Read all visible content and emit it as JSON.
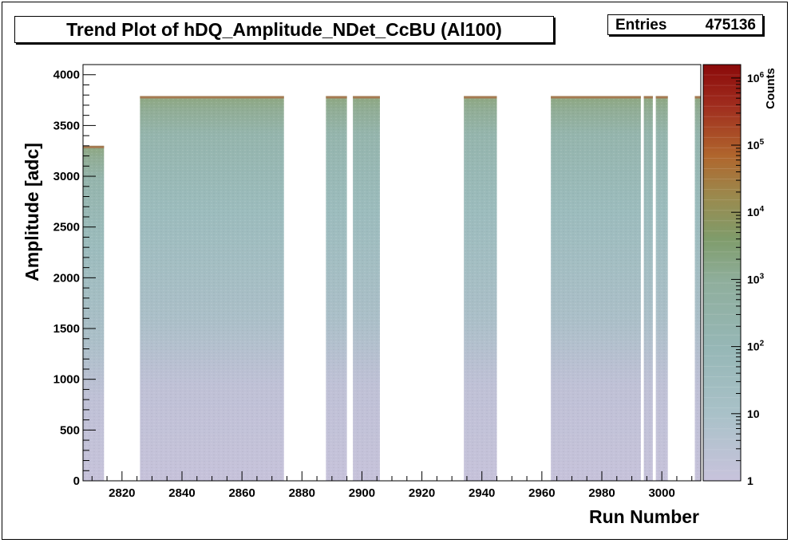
{
  "chart_data": {
    "type": "heatmap",
    "title": "Trend Plot of hDQ_Amplitude_NDet_CcBU (Al100)",
    "xlabel": "Run Number",
    "ylabel": "Amplitude [adc]",
    "zlabel": "Counts",
    "xlim": [
      2807,
      3013
    ],
    "ylim": [
      0,
      4100
    ],
    "z_scale": "log",
    "x_ticks": [
      2820,
      2840,
      2860,
      2880,
      2900,
      2920,
      2940,
      2960,
      2980,
      3000
    ],
    "y_ticks": [
      0,
      500,
      1000,
      1500,
      2000,
      2500,
      3000,
      3500,
      4000
    ],
    "z_tick_labels": [
      {
        "base": "1",
        "exp": ""
      },
      {
        "base": "10",
        "exp": ""
      },
      {
        "base": "10",
        "exp": "2"
      },
      {
        "base": "10",
        "exp": "3"
      },
      {
        "base": "10",
        "exp": "4"
      },
      {
        "base": "10",
        "exp": "5"
      },
      {
        "base": "10",
        "exp": "6"
      }
    ],
    "populated_run_ranges": [
      {
        "x_start": 2807,
        "x_end": 2814,
        "y_max": 3300
      },
      {
        "x_start": 2826,
        "x_end": 2874,
        "y_max": 3790
      },
      {
        "x_start": 2888,
        "x_end": 2895,
        "y_max": 3790
      },
      {
        "x_start": 2897,
        "x_end": 2906,
        "y_max": 3790
      },
      {
        "x_start": 2934,
        "x_end": 2945,
        "y_max": 3790
      },
      {
        "x_start": 2963,
        "x_end": 2993,
        "y_max": 3790
      },
      {
        "x_start": 2994,
        "x_end": 2997,
        "y_max": 3790
      },
      {
        "x_start": 2998,
        "x_end": 3002,
        "y_max": 3790
      },
      {
        "x_start": 3011,
        "x_end": 3013,
        "y_max": 3790
      }
    ],
    "colormap": [
      "#c8c3dc",
      "#a9c1c8",
      "#96b7b6",
      "#8fae9c",
      "#7f9c6b",
      "#9a8a4e",
      "#b0662d",
      "#a02d1e",
      "#8b0a0a"
    ]
  },
  "stats": {
    "label": "Entries",
    "value": "475136"
  }
}
